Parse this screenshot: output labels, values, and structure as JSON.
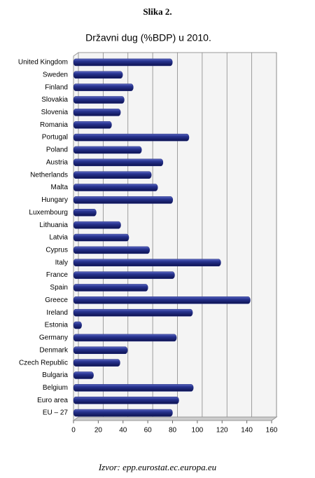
{
  "heading": "Slika 2.",
  "chart_data": {
    "type": "hbar",
    "title": "Državni dug (%BDP) u 2010.",
    "categories": [
      "United Kingdom",
      "Sweden",
      "Finland",
      "Slovakia",
      "Slovenia",
      "Romania",
      "Portugal",
      "Poland",
      "Austria",
      "Netherlands",
      "Malta",
      "Hungary",
      "Luxembourg",
      "Lithuania",
      "Latvia",
      "Cyprus",
      "Italy",
      "France",
      "Spain",
      "Greece",
      "Ireland",
      "Estonia",
      "Germany",
      "Denmark",
      "Czech Republic",
      "Bulgaria",
      "Belgium",
      "Euro area",
      "EU – 27"
    ],
    "values": [
      79.9,
      39.7,
      48.3,
      41.0,
      38.0,
      30.8,
      93.3,
      55.0,
      72.3,
      62.9,
      68.0,
      80.2,
      18.4,
      38.2,
      44.7,
      61.5,
      119.0,
      81.7,
      60.1,
      142.8,
      96.2,
      6.6,
      83.2,
      43.6,
      37.6,
      16.2,
      96.8,
      85.1,
      80.0
    ],
    "color": "#1f2a80",
    "xlim": [
      0,
      160
    ],
    "xticks": [
      0,
      20,
      40,
      60,
      80,
      100,
      120,
      140,
      160
    ],
    "grid": true
  },
  "source": "Izvor: epp.eurostat.ec.europa.eu"
}
